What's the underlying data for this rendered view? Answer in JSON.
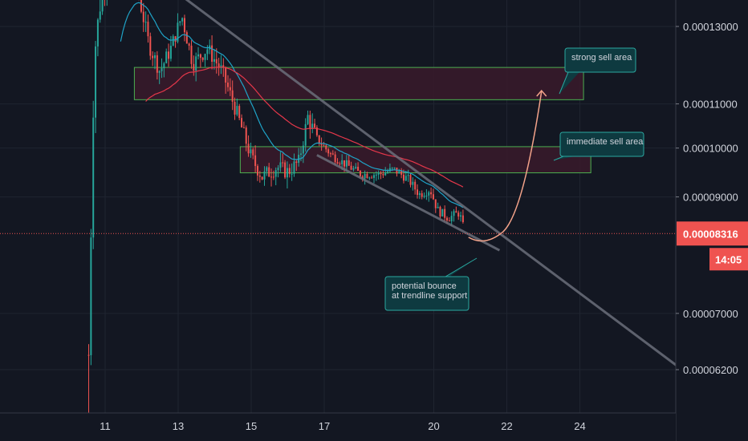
{
  "chart_data": {
    "type": "candlestick",
    "y_scale": "log",
    "y_axis_labels": [
      "0.00013000",
      "0.00011000",
      "0.00010000",
      "0.00009000",
      "0.00008316",
      "0.00007000",
      "0.00006200"
    ],
    "y_axis_values": [
      0.00013,
      0.00011,
      0.0001,
      9e-05,
      8.316e-05,
      7e-05,
      6.2e-05
    ],
    "x_axis_labels": [
      "11",
      "13",
      "15",
      "17",
      "20",
      "22",
      "24"
    ],
    "x_axis_days": [
      11,
      13,
      15,
      17,
      20,
      22,
      24
    ],
    "current_price": {
      "label": "0.00008316",
      "value": 8.316e-05,
      "countdown": "14:05"
    },
    "annotations": [
      {
        "id": "strong-sell",
        "text": "strong sell area"
      },
      {
        "id": "immediate-sell",
        "text": "immediate sell area"
      },
      {
        "id": "bounce",
        "lines": [
          "potential bounce",
          "at trendline support"
        ]
      }
    ],
    "zones": [
      {
        "name": "strong sell area",
        "from_day": 11.8,
        "to_day": 24.1,
        "low": 0.000111,
        "high": 0.000119
      },
      {
        "name": "immediate sell area",
        "from_day": 14.7,
        "to_day": 24.3,
        "low": 9.48e-05,
        "high": 0.0001003
      }
    ],
    "trendlines": [
      {
        "from": {
          "day": 13.2,
          "price": 0.000138
        },
        "to": {
          "day": 26.8,
          "price": 6.2e-05
        }
      },
      {
        "from": {
          "day": 16.8,
          "price": 9.85e-05
        },
        "to": {
          "day": 21.8,
          "price": 8.02e-05
        }
      }
    ],
    "colors": {
      "background": "#131722",
      "up": "#26a69a",
      "down": "#ef5350",
      "ema_fast": "#1fa3c7",
      "ema_slow": "#e5374a",
      "zone_fill": "#3a1a2a",
      "zone_border": "#4caf50",
      "trendline": "#6b6f7a",
      "projection": "#f4a38a",
      "annotation_bg": "#0e3a40",
      "annotation_border": "#2ba8a0",
      "price_tag": "#ef5350"
    }
  }
}
